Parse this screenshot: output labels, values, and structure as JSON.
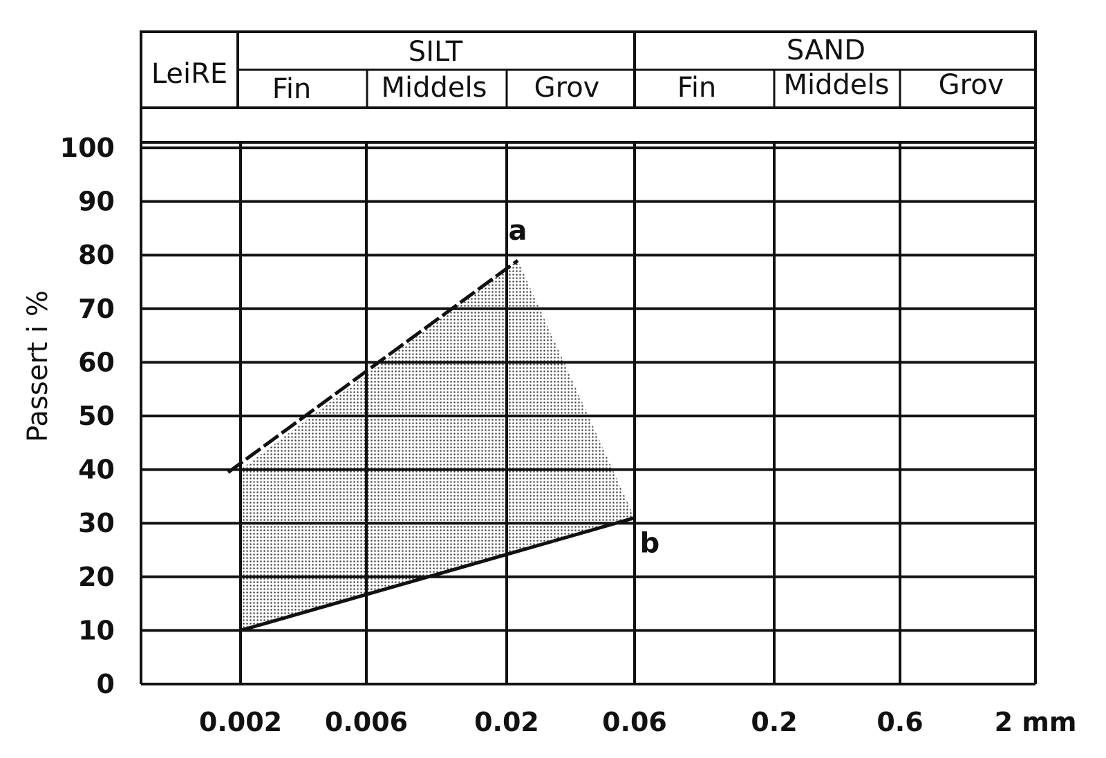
{
  "header": {
    "clay": "LeiRE",
    "silt": "SILT",
    "sand": "SAND",
    "silt_sub": [
      "Fin",
      "Middels",
      "Grov"
    ],
    "sand_sub": [
      "Fin",
      "Middels",
      "Grov"
    ]
  },
  "chart_data": {
    "type": "area",
    "xscale": "log",
    "ylabel": "Passert i %",
    "x_ticks": [
      "0.002",
      "0.006",
      "0.02",
      "0.06",
      "0.2",
      "0.6",
      "2 mm"
    ],
    "y_ticks": [
      "0",
      "10",
      "20",
      "30",
      "40",
      "50",
      "60",
      "70",
      "80",
      "90",
      "100"
    ],
    "ylim": [
      0,
      100
    ],
    "grid": true,
    "envelope": {
      "fill": "#555555",
      "upper": {
        "x": [
          0.002,
          0.022
        ],
        "y": [
          40,
          79
        ]
      },
      "lower": {
        "x": [
          0.002,
          0.06
        ],
        "y": [
          10,
          31
        ]
      }
    },
    "annotations": [
      {
        "text": "a",
        "x": 0.022,
        "y": 79
      },
      {
        "text": "b",
        "x": 0.06,
        "y": 31
      }
    ]
  }
}
